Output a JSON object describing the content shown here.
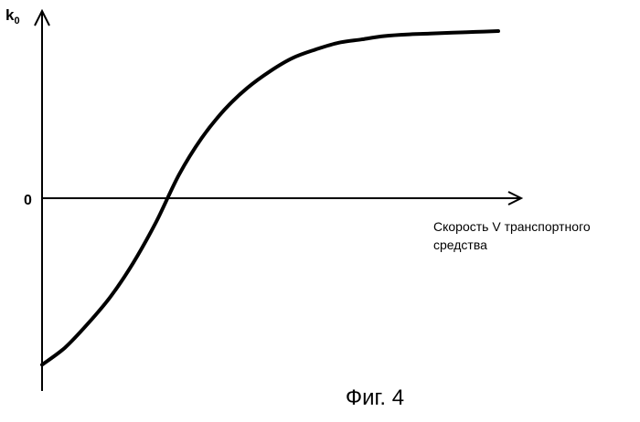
{
  "chart_data": {
    "type": "line",
    "ylabel": {
      "main": "k",
      "sub": "0"
    },
    "y_ticks": [
      "0"
    ],
    "xlabel": [
      "Скорость V транспортного",
      "средства"
    ],
    "series": [
      {
        "x": [
          0,
          0.05,
          0.1,
          0.15,
          0.2,
          0.25,
          0.3,
          0.35,
          0.4,
          0.45,
          0.5,
          0.55,
          0.6,
          0.65,
          0.7,
          0.75,
          0.8,
          0.85,
          0.9,
          0.95,
          1.0
        ],
        "values": [
          -0.98,
          -0.88,
          -0.74,
          -0.58,
          -0.38,
          -0.14,
          0.14,
          0.36,
          0.53,
          0.66,
          0.76,
          0.84,
          0.89,
          0.93,
          0.95,
          0.97,
          0.98,
          0.985,
          0.99,
          0.995,
          1.0
        ]
      }
    ],
    "legend": "none",
    "grid": false
  },
  "caption": "Фиг. 4"
}
